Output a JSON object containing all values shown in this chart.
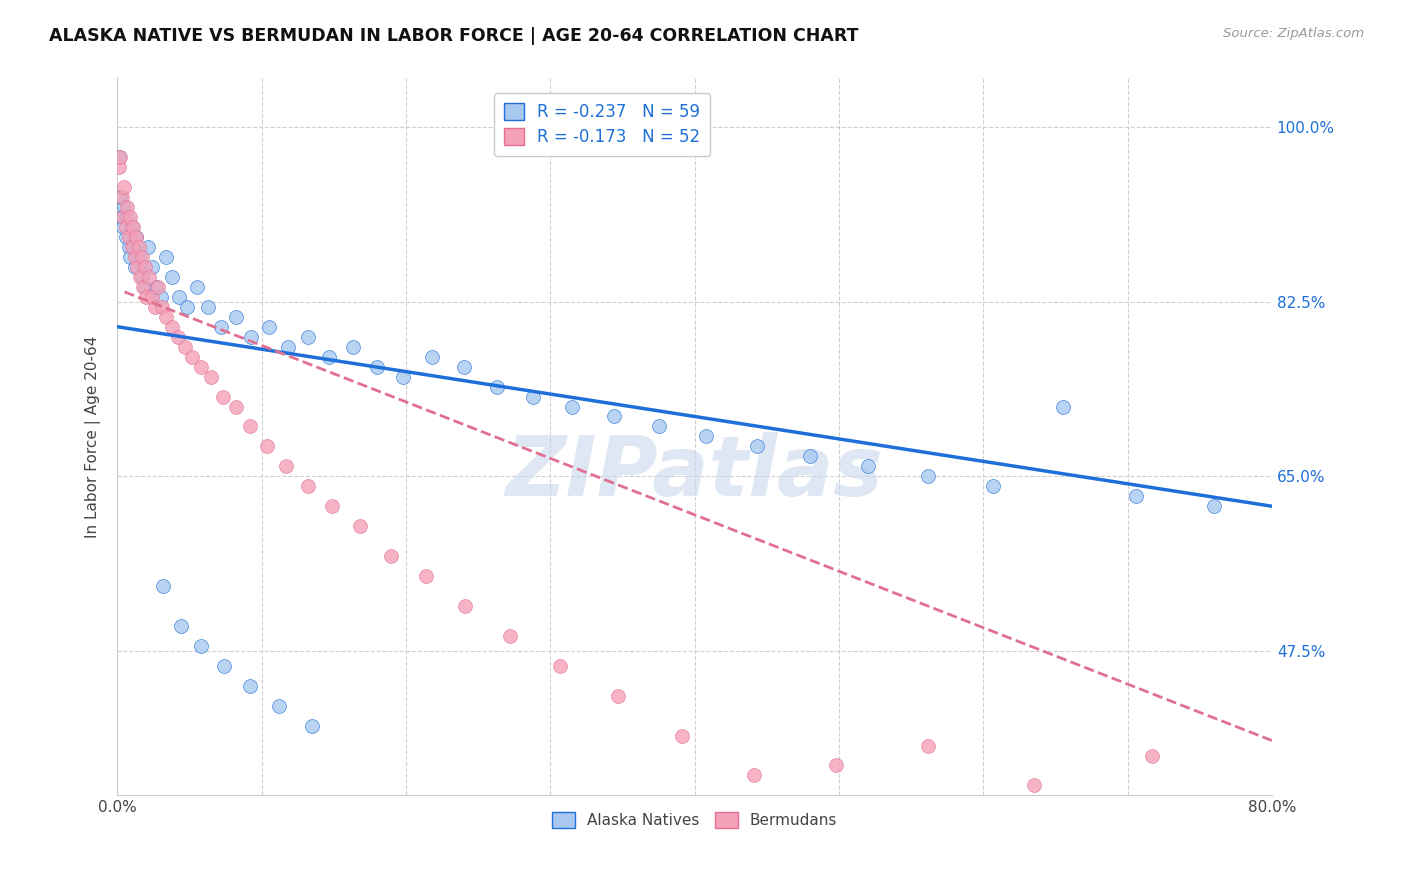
{
  "title": "ALASKA NATIVE VS BERMUDAN IN LABOR FORCE | AGE 20-64 CORRELATION CHART",
  "source": "Source: ZipAtlas.com",
  "ylabel": "In Labor Force | Age 20-64",
  "xlim": [
    0.0,
    0.8
  ],
  "ylim": [
    0.33,
    1.05
  ],
  "yticks": [
    0.475,
    0.65,
    0.825,
    1.0
  ],
  "ytick_labels": [
    "47.5%",
    "65.0%",
    "82.5%",
    "100.0%"
  ],
  "xticks": [
    0.0,
    0.1,
    0.2,
    0.3,
    0.4,
    0.5,
    0.6,
    0.7,
    0.8
  ],
  "xtick_labels": [
    "0.0%",
    "",
    "",
    "",
    "",
    "",
    "",
    "",
    "80.0%"
  ],
  "r_alaska": -0.237,
  "n_alaska": 59,
  "r_bermudan": -0.173,
  "n_bermudan": 52,
  "color_alaska": "#A8C8F0",
  "color_bermudan": "#F4A0B8",
  "color_line_alaska": "#1E6FD9",
  "color_line_bermudan": "#E07090",
  "watermark_text": "ZIPatlas",
  "watermark_color": "#C8D8EC",
  "alaska_x": [
    0.001,
    0.002,
    0.003,
    0.004,
    0.005,
    0.006,
    0.007,
    0.008,
    0.009,
    0.01,
    0.011,
    0.012,
    0.013,
    0.015,
    0.017,
    0.019,
    0.021,
    0.024,
    0.027,
    0.03,
    0.034,
    0.038,
    0.043,
    0.048,
    0.055,
    0.063,
    0.072,
    0.082,
    0.093,
    0.105,
    0.118,
    0.132,
    0.147,
    0.163,
    0.18,
    0.198,
    0.218,
    0.24,
    0.263,
    0.288,
    0.315,
    0.344,
    0.375,
    0.408,
    0.443,
    0.48,
    0.52,
    0.562,
    0.607,
    0.655,
    0.706,
    0.76,
    0.032,
    0.044,
    0.058,
    0.074,
    0.092,
    0.112,
    0.135
  ],
  "alaska_y": [
    0.97,
    0.93,
    0.91,
    0.9,
    0.92,
    0.89,
    0.91,
    0.88,
    0.87,
    0.9,
    0.88,
    0.86,
    0.89,
    0.87,
    0.85,
    0.84,
    0.88,
    0.86,
    0.84,
    0.83,
    0.87,
    0.85,
    0.83,
    0.82,
    0.84,
    0.82,
    0.8,
    0.81,
    0.79,
    0.8,
    0.78,
    0.79,
    0.77,
    0.78,
    0.76,
    0.75,
    0.77,
    0.76,
    0.74,
    0.73,
    0.72,
    0.71,
    0.7,
    0.69,
    0.68,
    0.67,
    0.66,
    0.65,
    0.64,
    0.72,
    0.63,
    0.62,
    0.54,
    0.5,
    0.48,
    0.46,
    0.44,
    0.42,
    0.4
  ],
  "bermudan_x": [
    0.001,
    0.002,
    0.003,
    0.004,
    0.005,
    0.006,
    0.007,
    0.008,
    0.009,
    0.01,
    0.011,
    0.012,
    0.013,
    0.014,
    0.015,
    0.016,
    0.017,
    0.018,
    0.019,
    0.02,
    0.022,
    0.024,
    0.026,
    0.028,
    0.031,
    0.034,
    0.038,
    0.042,
    0.047,
    0.052,
    0.058,
    0.065,
    0.073,
    0.082,
    0.092,
    0.104,
    0.117,
    0.132,
    0.149,
    0.168,
    0.19,
    0.214,
    0.241,
    0.272,
    0.307,
    0.347,
    0.391,
    0.441,
    0.498,
    0.562,
    0.635,
    0.717
  ],
  "bermudan_y": [
    0.96,
    0.97,
    0.93,
    0.91,
    0.94,
    0.9,
    0.92,
    0.89,
    0.91,
    0.88,
    0.9,
    0.87,
    0.89,
    0.86,
    0.88,
    0.85,
    0.87,
    0.84,
    0.86,
    0.83,
    0.85,
    0.83,
    0.82,
    0.84,
    0.82,
    0.81,
    0.8,
    0.79,
    0.78,
    0.77,
    0.76,
    0.75,
    0.73,
    0.72,
    0.7,
    0.68,
    0.66,
    0.64,
    0.62,
    0.6,
    0.57,
    0.55,
    0.52,
    0.49,
    0.46,
    0.43,
    0.39,
    0.35,
    0.36,
    0.38,
    0.34,
    0.37
  ]
}
